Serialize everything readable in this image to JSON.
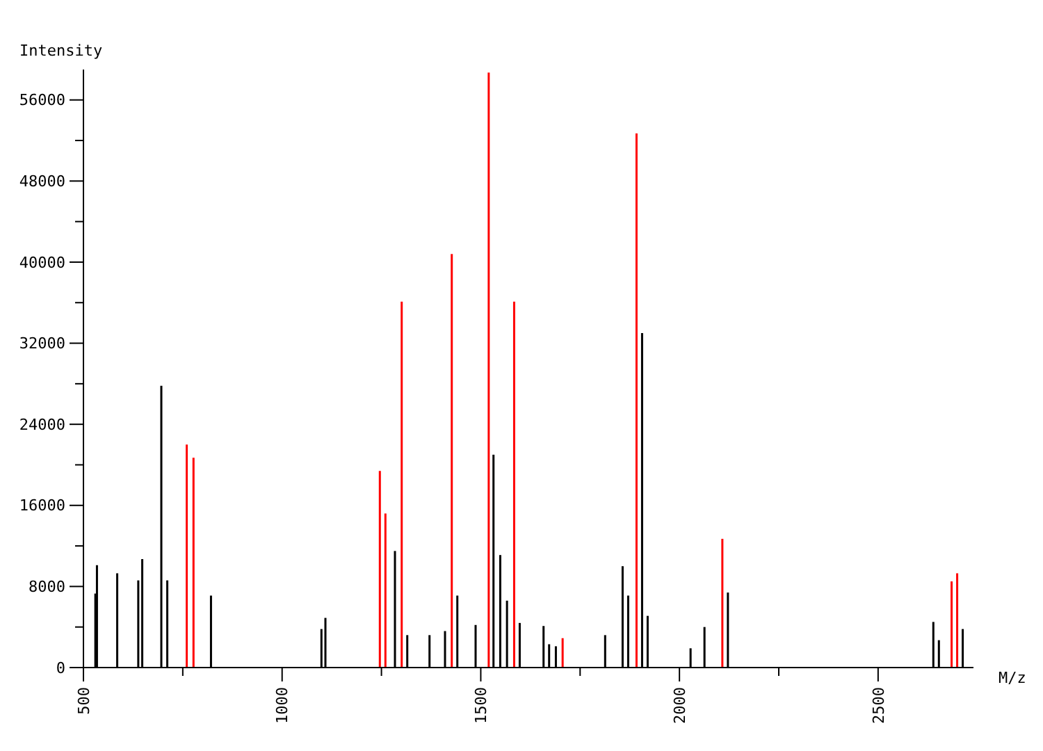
{
  "chart_data": {
    "type": "bar",
    "xlabel": "M/z",
    "ylabel": "Intensity",
    "xlim": [
      500,
      2740
    ],
    "ylim": [
      0,
      59000
    ],
    "xticks": [
      500,
      {
        "value": 750,
        "label": null
      },
      1000,
      {
        "value": 1250,
        "label": null
      },
      1500,
      {
        "value": 1750,
        "label": null
      },
      2000,
      {
        "value": 2250,
        "label": null
      },
      2500
    ],
    "yticks": [
      0,
      {
        "value": 4000,
        "label": null
      },
      8000,
      {
        "value": 12000,
        "label": null
      },
      16000,
      {
        "value": 20000,
        "label": null
      },
      24000,
      {
        "value": 28000,
        "label": null
      },
      32000,
      {
        "value": 36000,
        "label": null
      },
      40000,
      {
        "value": 44000,
        "label": null
      },
      48000,
      {
        "value": 52000,
        "label": null
      },
      56000
    ],
    "grid": false,
    "series": [
      {
        "color": "#000000",
        "x": [
          530,
          534,
          585,
          638,
          648,
          696,
          711,
          821,
          1099,
          1109,
          1284,
          1315,
          1371,
          1410,
          1441,
          1487,
          1532,
          1549,
          1566,
          1598,
          1658,
          1672,
          1689,
          1813,
          1857,
          1871,
          1906,
          1920,
          2028,
          2063,
          2122,
          2639,
          2653,
          2713
        ],
        "values": [
          7300,
          10100,
          9300,
          8600,
          10700,
          27800,
          8600,
          7100,
          3800,
          4900,
          11500,
          3200,
          3200,
          3600,
          7100,
          4200,
          21000,
          11100,
          6600,
          4400,
          4100,
          2300,
          2100,
          3200,
          10000,
          7100,
          33000,
          5100,
          1900,
          4000,
          7400,
          4500,
          2700,
          3800
        ]
      },
      {
        "color": "#ff0000",
        "x": [
          760,
          777,
          1246,
          1260,
          1301,
          1427,
          1520,
          1584,
          1706,
          1892,
          2108,
          2685,
          2699
        ],
        "values": [
          22000,
          20700,
          19400,
          15200,
          36100,
          40800,
          58700,
          36100,
          2900,
          52700,
          12700,
          8500,
          9300
        ]
      }
    ]
  }
}
